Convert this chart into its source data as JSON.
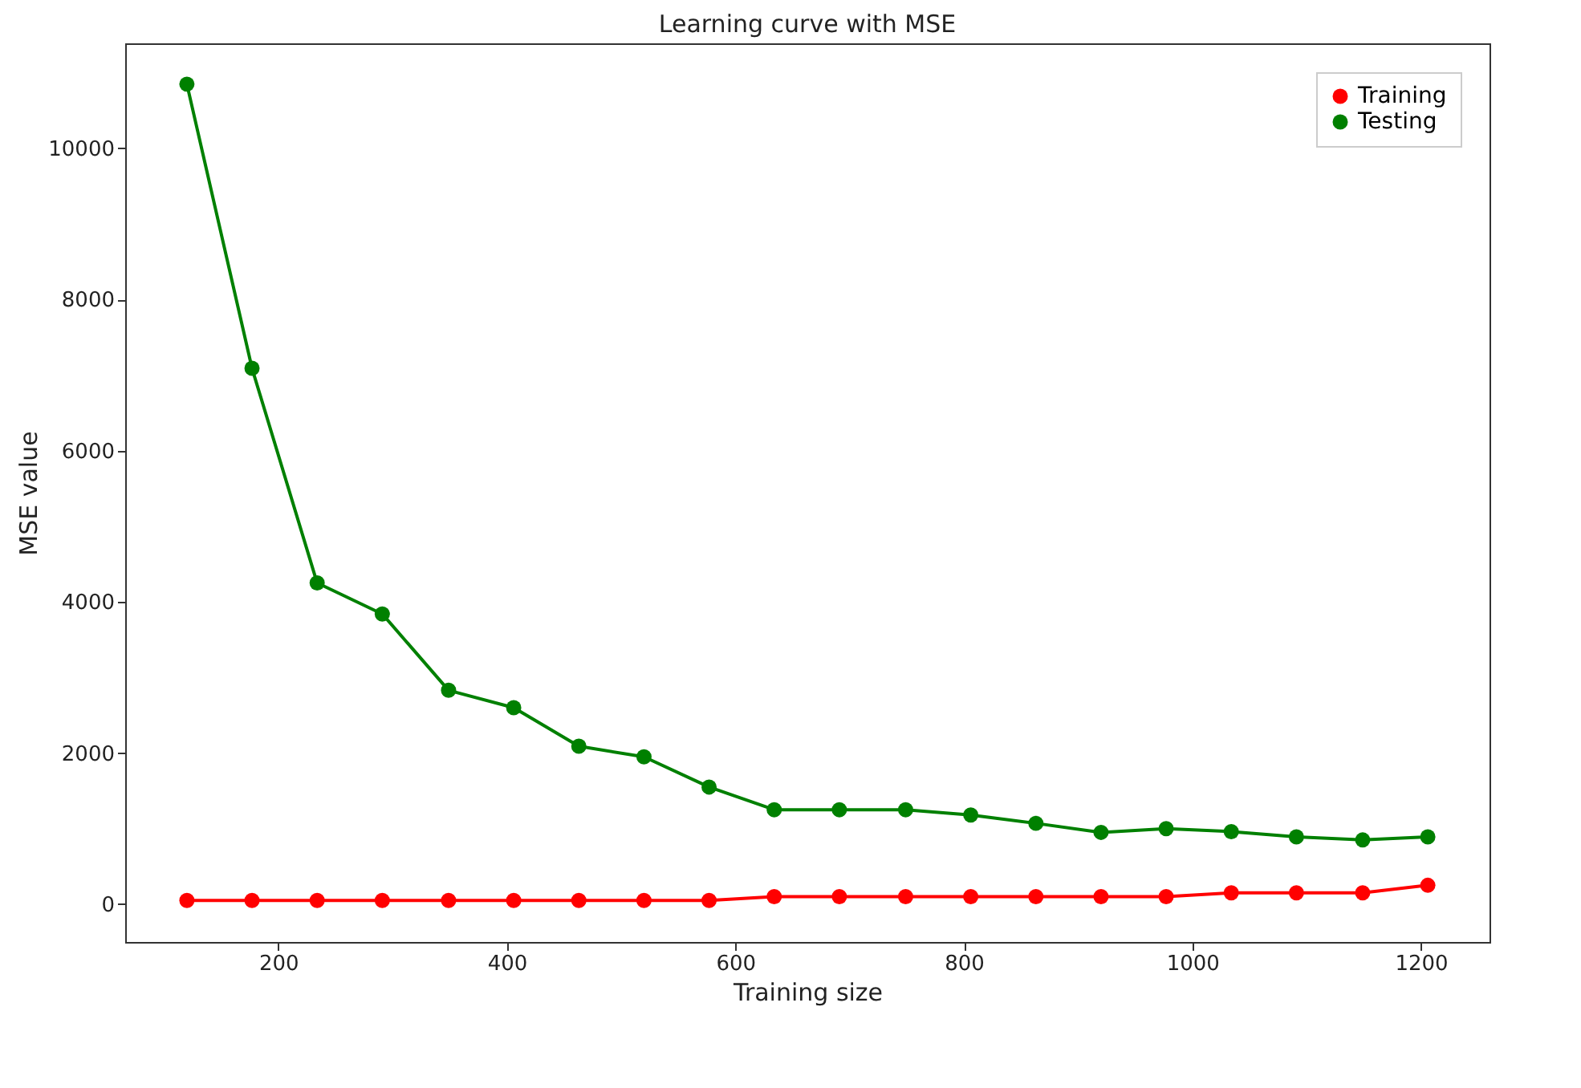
{
  "chart_data": {
    "type": "line",
    "title": "Learning curve with MSE",
    "xlabel": "Training size",
    "ylabel": "MSE value",
    "x": [
      120,
      177,
      234,
      291,
      349,
      406,
      463,
      520,
      577,
      634,
      691,
      749,
      806,
      863,
      920,
      977,
      1034,
      1091,
      1149,
      1206
    ],
    "series": [
      {
        "name": "Training",
        "color": "#ff0000",
        "values": [
          50,
          50,
          50,
          50,
          50,
          50,
          50,
          50,
          50,
          100,
          100,
          100,
          100,
          100,
          100,
          100,
          150,
          150,
          150,
          250
        ]
      },
      {
        "name": "Testing",
        "color": "#008000",
        "values": [
          10850,
          7090,
          4250,
          3840,
          2830,
          2600,
          2090,
          1950,
          1550,
          1250,
          1250,
          1250,
          1180,
          1070,
          950,
          1000,
          960,
          890,
          850,
          890
        ]
      }
    ],
    "xlim": [
      66,
      1260
    ],
    "ylim": [
      -500,
      11390
    ],
    "xticks": [
      200,
      400,
      600,
      800,
      1000,
      1200
    ],
    "yticks": [
      0,
      2000,
      4000,
      6000,
      8000,
      10000
    ],
    "grid": false,
    "legend": "top right",
    "marker": "circle",
    "line_style": "solid"
  }
}
